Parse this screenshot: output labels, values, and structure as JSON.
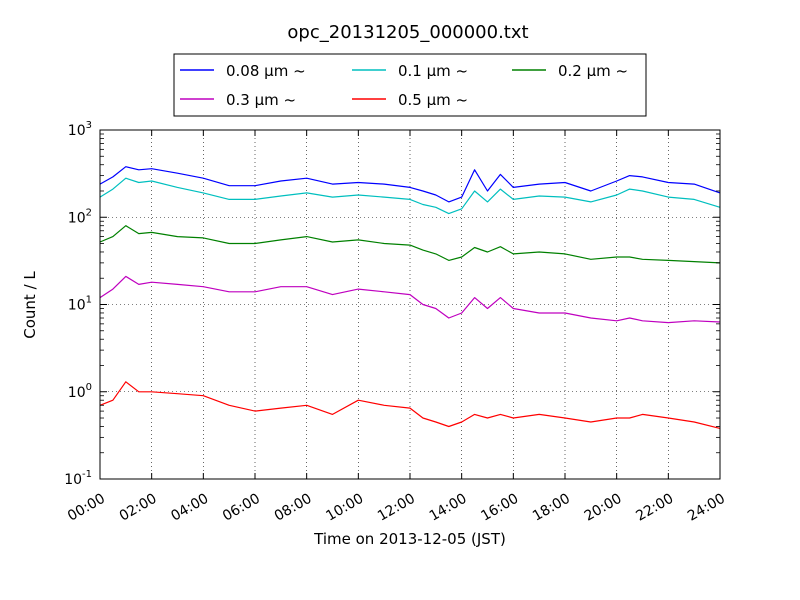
{
  "chart_data": {
    "type": "line",
    "title": "opc_20131205_000000.txt",
    "xlabel": "Time on 2013-12-05 (JST)",
    "ylabel": "Count / L",
    "x_tick_labels": [
      "00:00",
      "02:00",
      "04:00",
      "06:00",
      "08:00",
      "10:00",
      "12:00",
      "14:00",
      "16:00",
      "18:00",
      "20:00",
      "22:00",
      "24:00"
    ],
    "y_tick_labels": [
      {
        "base": "10",
        "exp": "-1"
      },
      {
        "base": "10",
        "exp": "0"
      },
      {
        "base": "10",
        "exp": "1"
      },
      {
        "base": "10",
        "exp": "2"
      },
      {
        "base": "10",
        "exp": "3"
      }
    ],
    "xlim": [
      0,
      24
    ],
    "ylim": [
      0.1,
      1000
    ],
    "yscale": "log",
    "grid": true,
    "legend_position": "top-center",
    "x_hours": [
      0,
      0.5,
      1,
      1.5,
      2,
      3,
      4,
      5,
      6,
      7,
      8,
      9,
      10,
      11,
      12,
      12.5,
      13,
      13.5,
      14,
      14.5,
      15,
      15.5,
      16,
      17,
      18,
      19,
      20,
      20.5,
      21,
      22,
      23,
      24
    ],
    "series": [
      {
        "name": "0.08 μm ~",
        "color": "#0000ff",
        "values": [
          240,
          290,
          380,
          350,
          360,
          320,
          280,
          230,
          230,
          260,
          280,
          240,
          250,
          240,
          220,
          200,
          180,
          150,
          170,
          350,
          200,
          310,
          220,
          240,
          250,
          200,
          260,
          300,
          290,
          250,
          240,
          190
        ]
      },
      {
        "name": "0.1 μm ~",
        "color": "#00bfbf",
        "values": [
          170,
          210,
          280,
          250,
          260,
          220,
          190,
          160,
          160,
          175,
          190,
          170,
          180,
          170,
          160,
          140,
          130,
          110,
          125,
          200,
          150,
          210,
          160,
          175,
          170,
          150,
          180,
          210,
          200,
          170,
          160,
          130
        ]
      },
      {
        "name": "0.2 μm ~",
        "color": "#008000",
        "values": [
          52,
          60,
          80,
          65,
          67,
          60,
          58,
          50,
          50,
          55,
          60,
          52,
          55,
          50,
          48,
          42,
          38,
          32,
          35,
          45,
          40,
          46,
          38,
          40,
          38,
          33,
          35,
          35,
          33,
          32,
          31,
          30
        ]
      },
      {
        "name": "0.3 μm ~",
        "color": "#bf00bf",
        "values": [
          12,
          15,
          21,
          17,
          18,
          17,
          16,
          14,
          14,
          16,
          16,
          13,
          15,
          14,
          13,
          10,
          9,
          7,
          8,
          12,
          9,
          12,
          9,
          8,
          8,
          7,
          6.5,
          7,
          6.5,
          6.2,
          6.5,
          6.3
        ]
      },
      {
        "name": "0.5 μm ~",
        "color": "#ff0000",
        "values": [
          0.7,
          0.8,
          1.3,
          1.0,
          1.0,
          0.95,
          0.9,
          0.7,
          0.6,
          0.65,
          0.7,
          0.55,
          0.8,
          0.7,
          0.65,
          0.5,
          0.45,
          0.4,
          0.45,
          0.55,
          0.5,
          0.55,
          0.5,
          0.55,
          0.5,
          0.45,
          0.5,
          0.5,
          0.55,
          0.5,
          0.45,
          0.38
        ]
      }
    ]
  }
}
